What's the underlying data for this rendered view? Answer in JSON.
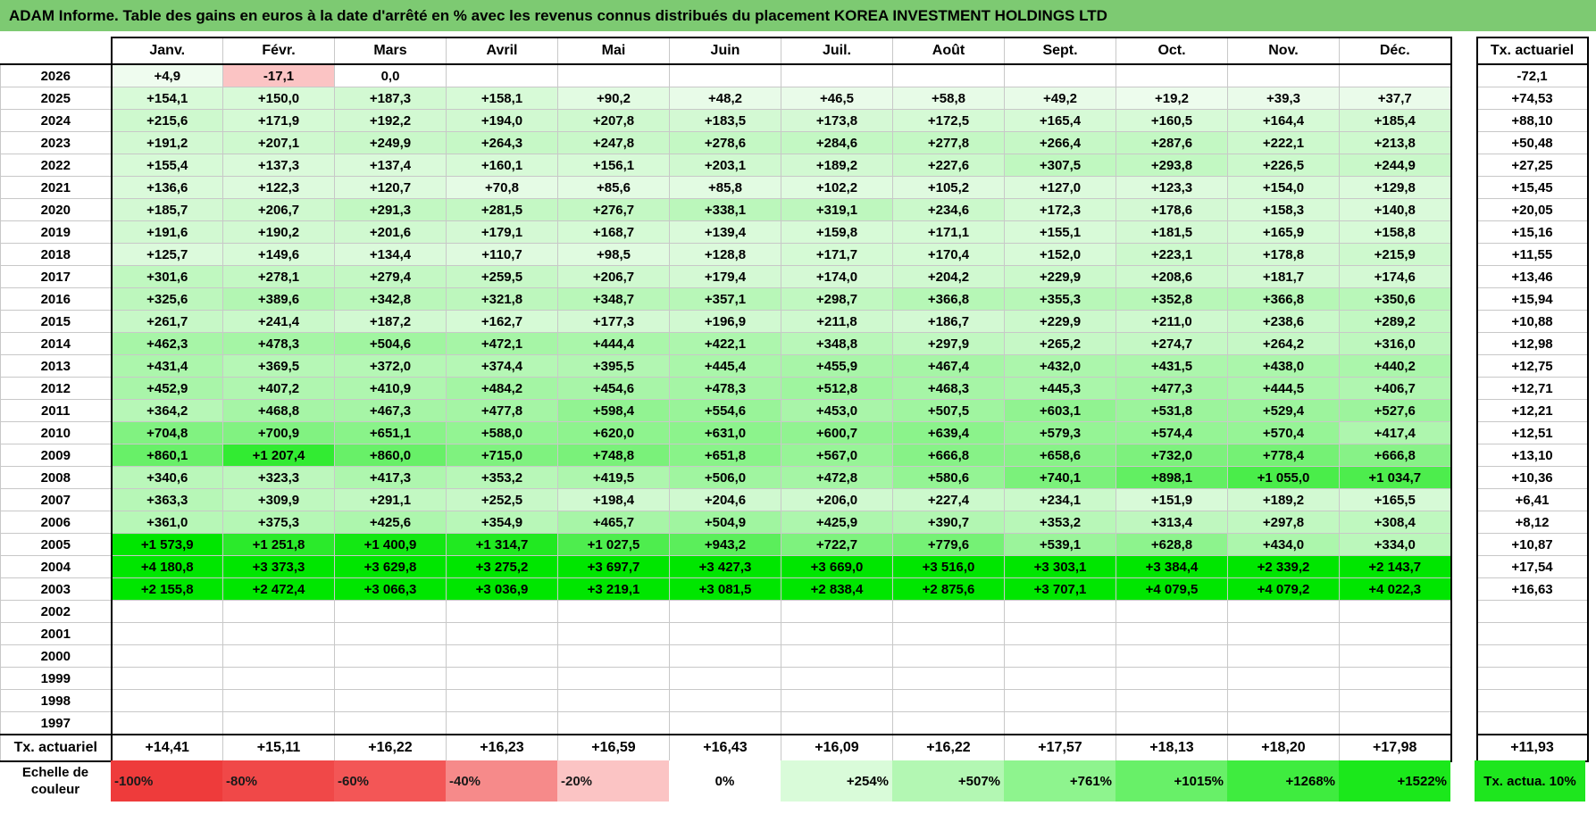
{
  "title": "ADAM Informe. Table des gains en euros à la date d'arrêté en % avec les revenus connus distribués du placement KOREA INVESTMENT HOLDINGS LTD",
  "months": [
    "Janv.",
    "Févr.",
    "Mars",
    "Avril",
    "Mai",
    "Juin",
    "Juil.",
    "Août",
    "Sept.",
    "Oct.",
    "Nov.",
    "Déc."
  ],
  "tx_header": "Tx. actuariel",
  "rows": [
    {
      "year": "2026",
      "values": [
        "+4,9",
        "-17,1",
        "0,0",
        "",
        "",
        "",
        "",
        "",
        "",
        "",
        "",
        ""
      ],
      "tx": "-72,1"
    },
    {
      "year": "2025",
      "values": [
        "+154,1",
        "+150,0",
        "+187,3",
        "+158,1",
        "+90,2",
        "+48,2",
        "+46,5",
        "+58,8",
        "+49,2",
        "+19,2",
        "+39,3",
        "+37,7"
      ],
      "tx": "+74,53"
    },
    {
      "year": "2024",
      "values": [
        "+215,6",
        "+171,9",
        "+192,2",
        "+194,0",
        "+207,8",
        "+183,5",
        "+173,8",
        "+172,5",
        "+165,4",
        "+160,5",
        "+164,4",
        "+185,4"
      ],
      "tx": "+88,10"
    },
    {
      "year": "2023",
      "values": [
        "+191,2",
        "+207,1",
        "+249,9",
        "+264,3",
        "+247,8",
        "+278,6",
        "+284,6",
        "+277,8",
        "+266,4",
        "+287,6",
        "+222,1",
        "+213,8"
      ],
      "tx": "+50,48"
    },
    {
      "year": "2022",
      "values": [
        "+155,4",
        "+137,3",
        "+137,4",
        "+160,1",
        "+156,1",
        "+203,1",
        "+189,2",
        "+227,6",
        "+307,5",
        "+293,8",
        "+226,5",
        "+244,9"
      ],
      "tx": "+27,25"
    },
    {
      "year": "2021",
      "values": [
        "+136,6",
        "+122,3",
        "+120,7",
        "+70,8",
        "+85,6",
        "+85,8",
        "+102,2",
        "+105,2",
        "+127,0",
        "+123,3",
        "+154,0",
        "+129,8"
      ],
      "tx": "+15,45"
    },
    {
      "year": "2020",
      "values": [
        "+185,7",
        "+206,7",
        "+291,3",
        "+281,5",
        "+276,7",
        "+338,1",
        "+319,1",
        "+234,6",
        "+172,3",
        "+178,6",
        "+158,3",
        "+140,8"
      ],
      "tx": "+20,05"
    },
    {
      "year": "2019",
      "values": [
        "+191,6",
        "+190,2",
        "+201,6",
        "+179,1",
        "+168,7",
        "+139,4",
        "+159,8",
        "+171,1",
        "+155,1",
        "+181,5",
        "+165,9",
        "+158,8"
      ],
      "tx": "+15,16"
    },
    {
      "year": "2018",
      "values": [
        "+125,7",
        "+149,6",
        "+134,4",
        "+110,7",
        "+98,5",
        "+128,8",
        "+171,7",
        "+170,4",
        "+152,0",
        "+223,1",
        "+178,8",
        "+215,9"
      ],
      "tx": "+11,55"
    },
    {
      "year": "2017",
      "values": [
        "+301,6",
        "+278,1",
        "+279,4",
        "+259,5",
        "+206,7",
        "+179,4",
        "+174,0",
        "+204,2",
        "+229,9",
        "+208,6",
        "+181,7",
        "+174,6"
      ],
      "tx": "+13,46"
    },
    {
      "year": "2016",
      "values": [
        "+325,6",
        "+389,6",
        "+342,8",
        "+321,8",
        "+348,7",
        "+357,1",
        "+298,7",
        "+366,8",
        "+355,3",
        "+352,8",
        "+366,8",
        "+350,6"
      ],
      "tx": "+15,94"
    },
    {
      "year": "2015",
      "values": [
        "+261,7",
        "+241,4",
        "+187,2",
        "+162,7",
        "+177,3",
        "+196,9",
        "+211,8",
        "+186,7",
        "+229,9",
        "+211,0",
        "+238,6",
        "+289,2"
      ],
      "tx": "+10,88"
    },
    {
      "year": "2014",
      "values": [
        "+462,3",
        "+478,3",
        "+504,6",
        "+472,1",
        "+444,4",
        "+422,1",
        "+348,8",
        "+297,9",
        "+265,2",
        "+274,7",
        "+264,2",
        "+316,0"
      ],
      "tx": "+12,98"
    },
    {
      "year": "2013",
      "values": [
        "+431,4",
        "+369,5",
        "+372,0",
        "+374,4",
        "+395,5",
        "+445,4",
        "+455,9",
        "+467,4",
        "+432,0",
        "+431,5",
        "+438,0",
        "+440,2"
      ],
      "tx": "+12,75"
    },
    {
      "year": "2012",
      "values": [
        "+452,9",
        "+407,2",
        "+410,9",
        "+484,2",
        "+454,6",
        "+478,3",
        "+512,8",
        "+468,3",
        "+445,3",
        "+477,3",
        "+444,5",
        "+406,7"
      ],
      "tx": "+12,71"
    },
    {
      "year": "2011",
      "values": [
        "+364,2",
        "+468,8",
        "+467,3",
        "+477,8",
        "+598,4",
        "+554,6",
        "+453,0",
        "+507,5",
        "+603,1",
        "+531,8",
        "+529,4",
        "+527,6"
      ],
      "tx": "+12,21"
    },
    {
      "year": "2010",
      "values": [
        "+704,8",
        "+700,9",
        "+651,1",
        "+588,0",
        "+620,0",
        "+631,0",
        "+600,7",
        "+639,4",
        "+579,3",
        "+574,4",
        "+570,4",
        "+417,4"
      ],
      "tx": "+12,51"
    },
    {
      "year": "2009",
      "values": [
        "+860,1",
        "+1 207,4",
        "+860,0",
        "+715,0",
        "+748,8",
        "+651,8",
        "+567,0",
        "+666,8",
        "+658,6",
        "+732,0",
        "+778,4",
        "+666,8"
      ],
      "tx": "+13,10"
    },
    {
      "year": "2008",
      "values": [
        "+340,6",
        "+323,3",
        "+417,3",
        "+353,2",
        "+419,5",
        "+506,0",
        "+472,8",
        "+580,6",
        "+740,1",
        "+898,1",
        "+1 055,0",
        "+1 034,7"
      ],
      "tx": "+10,36"
    },
    {
      "year": "2007",
      "values": [
        "+363,3",
        "+309,9",
        "+291,1",
        "+252,5",
        "+198,4",
        "+204,6",
        "+206,0",
        "+227,4",
        "+234,1",
        "+151,9",
        "+189,2",
        "+165,5"
      ],
      "tx": "+6,41"
    },
    {
      "year": "2006",
      "values": [
        "+361,0",
        "+375,3",
        "+425,6",
        "+354,9",
        "+465,7",
        "+504,9",
        "+425,9",
        "+390,7",
        "+353,2",
        "+313,4",
        "+297,8",
        "+308,4"
      ],
      "tx": "+8,12"
    },
    {
      "year": "2005",
      "values": [
        "+1 573,9",
        "+1 251,8",
        "+1 400,9",
        "+1 314,7",
        "+1 027,5",
        "+943,2",
        "+722,7",
        "+779,6",
        "+539,1",
        "+628,8",
        "+434,0",
        "+334,0"
      ],
      "tx": "+10,87"
    },
    {
      "year": "2004",
      "values": [
        "+4 180,8",
        "+3 373,3",
        "+3 629,8",
        "+3 275,2",
        "+3 697,7",
        "+3 427,3",
        "+3 669,0",
        "+3 516,0",
        "+3 303,1",
        "+3 384,4",
        "+2 339,2",
        "+2 143,7"
      ],
      "tx": "+17,54"
    },
    {
      "year": "2003",
      "values": [
        "+2 155,8",
        "+2 472,4",
        "+3 066,3",
        "+3 036,9",
        "+3 219,1",
        "+3 081,5",
        "+2 838,4",
        "+2 875,6",
        "+3 707,1",
        "+4 079,5",
        "+4 079,2",
        "+4 022,3"
      ],
      "tx": "+16,63"
    },
    {
      "year": "2002",
      "values": [
        "",
        "",
        "",
        "",
        "",
        "",
        "",
        "",
        "",
        "",
        "",
        ""
      ],
      "tx": ""
    },
    {
      "year": "2001",
      "values": [
        "",
        "",
        "",
        "",
        "",
        "",
        "",
        "",
        "",
        "",
        "",
        ""
      ],
      "tx": ""
    },
    {
      "year": "2000",
      "values": [
        "",
        "",
        "",
        "",
        "",
        "",
        "",
        "",
        "",
        "",
        "",
        ""
      ],
      "tx": ""
    },
    {
      "year": "1999",
      "values": [
        "",
        "",
        "",
        "",
        "",
        "",
        "",
        "",
        "",
        "",
        "",
        ""
      ],
      "tx": ""
    },
    {
      "year": "1998",
      "values": [
        "",
        "",
        "",
        "",
        "",
        "",
        "",
        "",
        "",
        "",
        "",
        ""
      ],
      "tx": ""
    },
    {
      "year": "1997",
      "values": [
        "",
        "",
        "",
        "",
        "",
        "",
        "",
        "",
        "",
        "",
        "",
        ""
      ],
      "tx": ""
    }
  ],
  "summary": {
    "label": "Tx. actuariel",
    "values": [
      "+14,41",
      "+15,11",
      "+16,22",
      "+16,23",
      "+16,59",
      "+16,43",
      "+16,09",
      "+16,22",
      "+17,57",
      "+18,13",
      "+18,20",
      "+17,98"
    ],
    "tx": "+11,93"
  },
  "scale": {
    "label": "Echelle de couleur",
    "steps": [
      {
        "label": "-100%",
        "color": "#ee3b3b"
      },
      {
        "label": "-80%",
        "color": "#f04848"
      },
      {
        "label": "-60%",
        "color": "#f35656"
      },
      {
        "label": "-40%",
        "color": "#f68a8a"
      },
      {
        "label": "-20%",
        "color": "#fbc4c4"
      },
      {
        "label": "0%",
        "color": "#ffffff"
      },
      {
        "label": "+254%",
        "color": "#d9fbd9"
      },
      {
        "label": "+507%",
        "color": "#b3f7b3"
      },
      {
        "label": "+761%",
        "color": "#8ef48e"
      },
      {
        "label": "+1015%",
        "color": "#68f068"
      },
      {
        "label": "+1268%",
        "color": "#3fec3f"
      },
      {
        "label": "+1522%",
        "color": "#1be81b"
      }
    ],
    "tx_label": "Tx. actua. 10%",
    "tx_color": "#1ee61e"
  },
  "colors": {
    "title_bar": "#7dca72",
    "negative": "#fbc4c4",
    "strong_green": "#00e600"
  }
}
